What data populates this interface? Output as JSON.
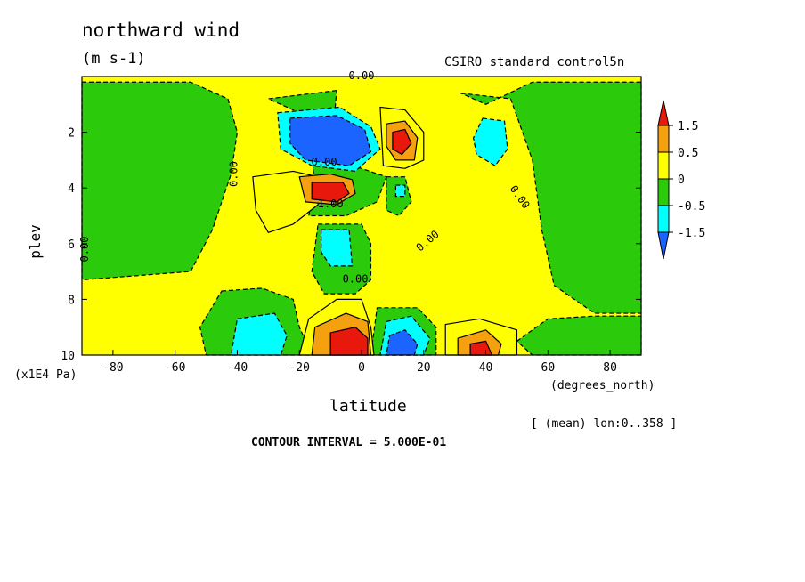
{
  "chart_data": {
    "type": "heatmap",
    "title": "northward wind",
    "units": "(m s-1)",
    "dataset": "CSIRO_standard_control5n",
    "xlabel": "latitude",
    "x_unit_label": "(degrees_north)",
    "ylabel": "plev",
    "y_unit_label": "(x1E4 Pa)",
    "mean_label": "[ (mean) lon:0..358 ]",
    "contour_interval_label": "CONTOUR INTERVAL = 5.000E-01",
    "xlim": [
      -90,
      90
    ],
    "ylim": [
      0,
      10
    ],
    "y_inverted": true,
    "x_ticks": [
      -80,
      -60,
      -40,
      -20,
      0,
      20,
      40,
      60,
      80
    ],
    "y_ticks": [
      2,
      4,
      6,
      8,
      10
    ],
    "colorbar": {
      "labels": [
        "1.5",
        "0.5",
        "0",
        "-0.5",
        "-1.5"
      ],
      "colors": [
        "#e8190c",
        "#f5a00f",
        "#ffff00",
        "#2bcb0c",
        "#00ffff",
        "#1c64ff"
      ]
    },
    "contour_labels": [
      {
        "text": "0.00",
        "x": 0,
        "y": 0.1
      },
      {
        "text": "0.00",
        "x": -40,
        "y": 3.5,
        "rotate": -90
      },
      {
        "text": "0.00",
        "x": -12,
        "y": 3.2
      },
      {
        "text": "1.00",
        "x": -10,
        "y": 4.7
      },
      {
        "text": "0.00",
        "x": 50,
        "y": 4.4,
        "rotate": 55
      },
      {
        "text": "0.00",
        "x": 22,
        "y": 6.0,
        "rotate": -40
      },
      {
        "text": "0.00",
        "x": -2,
        "y": 7.4
      },
      {
        "text": "0.00",
        "x": -88,
        "y": 6.2,
        "rotate": -90
      }
    ],
    "regions": [
      {
        "level": "-0.5to0",
        "shape": "poly",
        "points": [
          [
            -90,
            0.2
          ],
          [
            -55,
            0.2
          ],
          [
            -43,
            0.8
          ],
          [
            -40,
            2
          ],
          [
            -42,
            3.5
          ],
          [
            -48,
            5.5
          ],
          [
            -55,
            7
          ],
          [
            -90,
            7.3
          ]
        ]
      },
      {
        "level": "-0.5to0",
        "shape": "poly",
        "points": [
          [
            32,
            0.6
          ],
          [
            48,
            0.8
          ],
          [
            55,
            3
          ],
          [
            58,
            5.5
          ],
          [
            62,
            7.5
          ],
          [
            75,
            8.5
          ],
          [
            90,
            8.5
          ],
          [
            90,
            0.2
          ],
          [
            55,
            0.2
          ],
          [
            40,
            1
          ]
        ]
      },
      {
        "level": "-0.5to0",
        "shape": "poly",
        "points": [
          [
            -8,
            0.5
          ],
          [
            -30,
            0.8
          ],
          [
            -18,
            1.4
          ],
          [
            -15,
            3.8
          ],
          [
            -17,
            5
          ],
          [
            -5,
            5
          ],
          [
            5,
            4.5
          ],
          [
            8,
            3.6
          ],
          [
            0,
            3.3
          ],
          [
            -10,
            3
          ]
        ]
      },
      {
        "level": "-0.5to0",
        "shape": "poly",
        "points": [
          [
            8,
            3.6
          ],
          [
            14,
            3.6
          ],
          [
            16,
            4.5
          ],
          [
            12,
            5
          ],
          [
            8,
            4.8
          ]
        ]
      },
      {
        "level": "-0.5to0",
        "shape": "poly",
        "points": [
          [
            -14,
            5.3
          ],
          [
            0,
            5.3
          ],
          [
            3,
            6
          ],
          [
            3,
            7.3
          ],
          [
            -2,
            7.8
          ],
          [
            -12,
            7.8
          ],
          [
            -16,
            7
          ]
        ]
      },
      {
        "level": "-0.5to0",
        "shape": "poly",
        "points": [
          [
            -45,
            7.7
          ],
          [
            -32,
            7.6
          ],
          [
            -22,
            8
          ],
          [
            -20,
            9
          ],
          [
            -16,
            10
          ],
          [
            -50,
            10
          ],
          [
            -52,
            9
          ]
        ]
      },
      {
        "level": "-0.5to0",
        "shape": "poly",
        "points": [
          [
            5,
            8.3
          ],
          [
            18,
            8.3
          ],
          [
            24,
            9
          ],
          [
            24,
            10
          ],
          [
            3,
            10
          ]
        ]
      },
      {
        "level": "-0.5to0",
        "shape": "poly",
        "points": [
          [
            50,
            9.5
          ],
          [
            60,
            8.7
          ],
          [
            75,
            8.6
          ],
          [
            90,
            8.6
          ],
          [
            90,
            10
          ],
          [
            55,
            10
          ]
        ]
      },
      {
        "level": "0to0.5",
        "shape": "poly",
        "points": [
          [
            -35,
            3.6
          ],
          [
            -22,
            3.4
          ],
          [
            -14,
            3.6
          ],
          [
            -14,
            4.6
          ],
          [
            -22,
            5.3
          ],
          [
            -30,
            5.6
          ],
          [
            -34,
            4.8
          ]
        ]
      },
      {
        "level": "0to0.5",
        "shape": "poly",
        "points": [
          [
            6,
            1.1
          ],
          [
            14,
            1.2
          ],
          [
            20,
            2
          ],
          [
            20,
            3
          ],
          [
            14,
            3.3
          ],
          [
            7,
            3.2
          ]
        ]
      },
      {
        "level": "0to0.5",
        "shape": "poly",
        "points": [
          [
            -17,
            8.7
          ],
          [
            -8,
            8
          ],
          [
            0,
            8
          ],
          [
            3,
            9
          ],
          [
            4,
            10
          ],
          [
            -20,
            10
          ]
        ]
      },
      {
        "level": "0to0.5",
        "shape": "poly",
        "points": [
          [
            27,
            8.9
          ],
          [
            38,
            8.7
          ],
          [
            50,
            9.1
          ],
          [
            50,
            10
          ],
          [
            27,
            10
          ]
        ]
      },
      {
        "level": "0.5to1.5",
        "shape": "poly",
        "points": [
          [
            -20,
            3.6
          ],
          [
            -10,
            3.5
          ],
          [
            -3,
            3.7
          ],
          [
            -2,
            4.2
          ],
          [
            -8,
            4.6
          ],
          [
            -18,
            4.5
          ]
        ]
      },
      {
        "level": "0.5to1.5",
        "shape": "poly",
        "points": [
          [
            8,
            1.7
          ],
          [
            14,
            1.6
          ],
          [
            18,
            2.2
          ],
          [
            17,
            3
          ],
          [
            11,
            3
          ],
          [
            8,
            2.5
          ]
        ]
      },
      {
        "level": "0.5to1.5",
        "shape": "poly",
        "points": [
          [
            -15,
            9
          ],
          [
            -5,
            8.5
          ],
          [
            2,
            8.8
          ],
          [
            3,
            10
          ],
          [
            -16,
            10
          ]
        ]
      },
      {
        "level": "0.5to1.5",
        "shape": "poly",
        "points": [
          [
            31,
            9.4
          ],
          [
            40,
            9.1
          ],
          [
            45,
            9.6
          ],
          [
            44,
            10
          ],
          [
            31,
            10
          ]
        ]
      },
      {
        "level": "-1.0to-0.5",
        "shape": "poly",
        "points": [
          [
            -27,
            1.3
          ],
          [
            -7,
            1.1
          ],
          [
            3,
            1.8
          ],
          [
            6,
            2.6
          ],
          [
            -2,
            3.4
          ],
          [
            -16,
            3.2
          ],
          [
            -26,
            2.6
          ]
        ]
      },
      {
        "level": "-1.0to-0.5",
        "shape": "poly",
        "points": [
          [
            39,
            1.5
          ],
          [
            46,
            1.6
          ],
          [
            47,
            2.6
          ],
          [
            43,
            3.2
          ],
          [
            37,
            2.8
          ],
          [
            36,
            2.2
          ]
        ]
      },
      {
        "level": "-1.0to-0.5",
        "shape": "poly",
        "points": [
          [
            -13,
            5.5
          ],
          [
            -4,
            5.5
          ],
          [
            -3,
            6.8
          ],
          [
            -10,
            6.8
          ],
          [
            -13,
            6.3
          ]
        ]
      },
      {
        "level": "-1.0to-0.5",
        "shape": "poly",
        "points": [
          [
            -40,
            8.7
          ],
          [
            -28,
            8.5
          ],
          [
            -24,
            9.3
          ],
          [
            -26,
            10
          ],
          [
            -42,
            10
          ]
        ]
      },
      {
        "level": "-1.0to-0.5",
        "shape": "poly",
        "points": [
          [
            8,
            8.8
          ],
          [
            16,
            8.6
          ],
          [
            22,
            9.4
          ],
          [
            20,
            10
          ],
          [
            6,
            10
          ]
        ]
      },
      {
        "level": "-1.0to-0.5",
        "shape": "poly",
        "points": [
          [
            11,
            3.9
          ],
          [
            14,
            3.9
          ],
          [
            14,
            4.3
          ],
          [
            11,
            4.3
          ]
        ]
      },
      {
        "level": "below-1.0",
        "shape": "poly",
        "points": [
          [
            -23,
            1.5
          ],
          [
            -8,
            1.4
          ],
          [
            1,
            1.9
          ],
          [
            3,
            2.7
          ],
          [
            -4,
            3.2
          ],
          [
            -18,
            3
          ],
          [
            -23,
            2.4
          ]
        ]
      },
      {
        "level": "below-1.0",
        "shape": "poly",
        "points": [
          [
            9,
            9.3
          ],
          [
            14,
            9.1
          ],
          [
            18,
            9.6
          ],
          [
            17,
            10
          ],
          [
            8,
            10
          ]
        ]
      },
      {
        "level": "above1.5",
        "shape": "poly",
        "points": [
          [
            -16,
            3.8
          ],
          [
            -6,
            3.8
          ],
          [
            -4,
            4.2
          ],
          [
            -8,
            4.5
          ],
          [
            -16,
            4.4
          ]
        ]
      },
      {
        "level": "above1.5",
        "shape": "poly",
        "points": [
          [
            10,
            2
          ],
          [
            14,
            1.9
          ],
          [
            16,
            2.4
          ],
          [
            13,
            2.8
          ],
          [
            10,
            2.6
          ]
        ]
      },
      {
        "level": "above1.5",
        "shape": "poly",
        "points": [
          [
            -10,
            9.2
          ],
          [
            -2,
            9
          ],
          [
            2,
            9.4
          ],
          [
            2,
            10
          ],
          [
            -10,
            10
          ]
        ]
      },
      {
        "level": "above1.5",
        "shape": "poly",
        "points": [
          [
            35,
            9.6
          ],
          [
            40,
            9.5
          ],
          [
            42,
            10
          ],
          [
            35,
            10
          ]
        ]
      }
    ]
  }
}
